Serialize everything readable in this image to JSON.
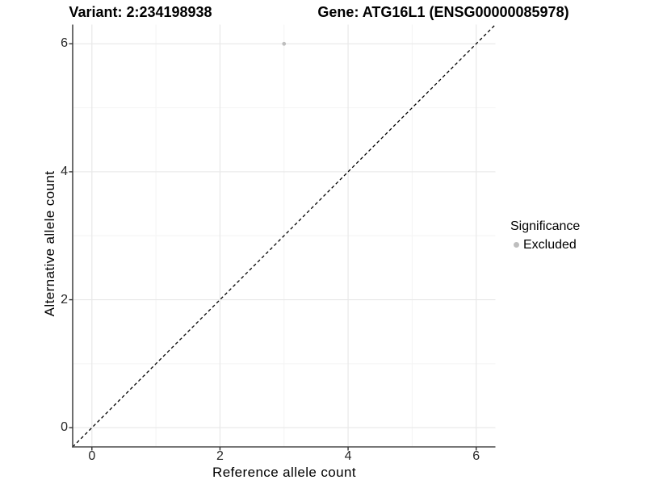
{
  "header": {
    "variant_title": "Variant: 2:234198938",
    "gene_title": "Gene: ATG16L1 (ENSG00000085978)"
  },
  "chart_data": {
    "type": "scatter",
    "title": "Variant: 2:234198938 — Gene: ATG16L1 (ENSG00000085978)",
    "xlabel": "Reference allele count",
    "ylabel": "Alternative allele count",
    "xlim": [
      -0.3,
      6.3
    ],
    "ylim": [
      -0.3,
      6.3
    ],
    "x_major_ticks": [
      0,
      2,
      4,
      6
    ],
    "y_major_ticks": [
      0,
      2,
      4,
      6
    ],
    "x_minor_gridlines": [
      1,
      3,
      5
    ],
    "y_minor_gridlines": [
      1,
      3,
      5
    ],
    "grid": "on",
    "points": [
      {
        "x": 3,
        "y": 6,
        "significance": "Excluded"
      }
    ],
    "reference_line": {
      "type": "identity",
      "slope": 1,
      "intercept": 0,
      "style": "dashed",
      "color": "#000000"
    },
    "legend": {
      "title": "Significance",
      "position": "right",
      "entries": [
        {
          "label": "Excluded",
          "color": "#bebebe"
        }
      ]
    }
  },
  "colors": {
    "point_excluded": "#bebebe",
    "grid_major": "#e8e8e8",
    "grid_minor": "#f4f4f4",
    "axis_line": "#4a4a4a",
    "tick_mark": "#333333",
    "tick_label": "#262626",
    "background": "#ffffff"
  }
}
